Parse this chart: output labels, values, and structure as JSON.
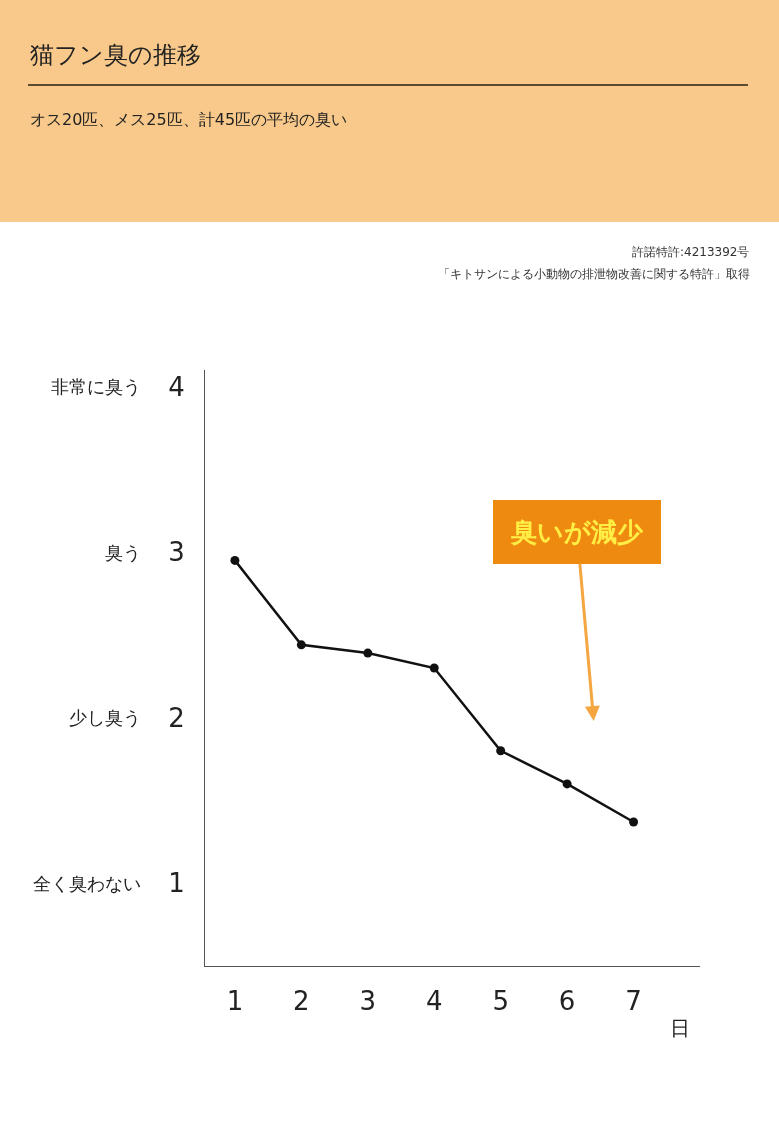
{
  "chart_data": {
    "type": "line",
    "title": "猫フン臭の推移",
    "subtitle": "オス20匹、メス25匹、計45匹の平均の臭い",
    "annotations": [
      "許諾特許:4213392号",
      "「キトサンによる小動物の排泄物改善に関する特許」取得",
      "臭いが減少",
      "全く臭わない",
      "少し臭う",
      "臭う",
      "非常に臭う"
    ],
    "x": [
      1,
      2,
      3,
      4,
      5,
      6,
      7
    ],
    "series": [
      {
        "color": "#111111",
        "values": [
          2.95,
          2.44,
          2.39,
          2.3,
          1.8,
          1.6,
          1.37
        ]
      }
    ],
    "xlabel": "日",
    "xlim": [
      0.55,
      8
    ],
    "xticks": [
      1,
      2,
      3,
      4,
      5,
      6,
      7
    ],
    "ylim": [
      0.5,
      4.1
    ],
    "yticks": [
      1,
      2,
      3,
      4
    ],
    "marker": "circle",
    "line_style": "solid"
  }
}
